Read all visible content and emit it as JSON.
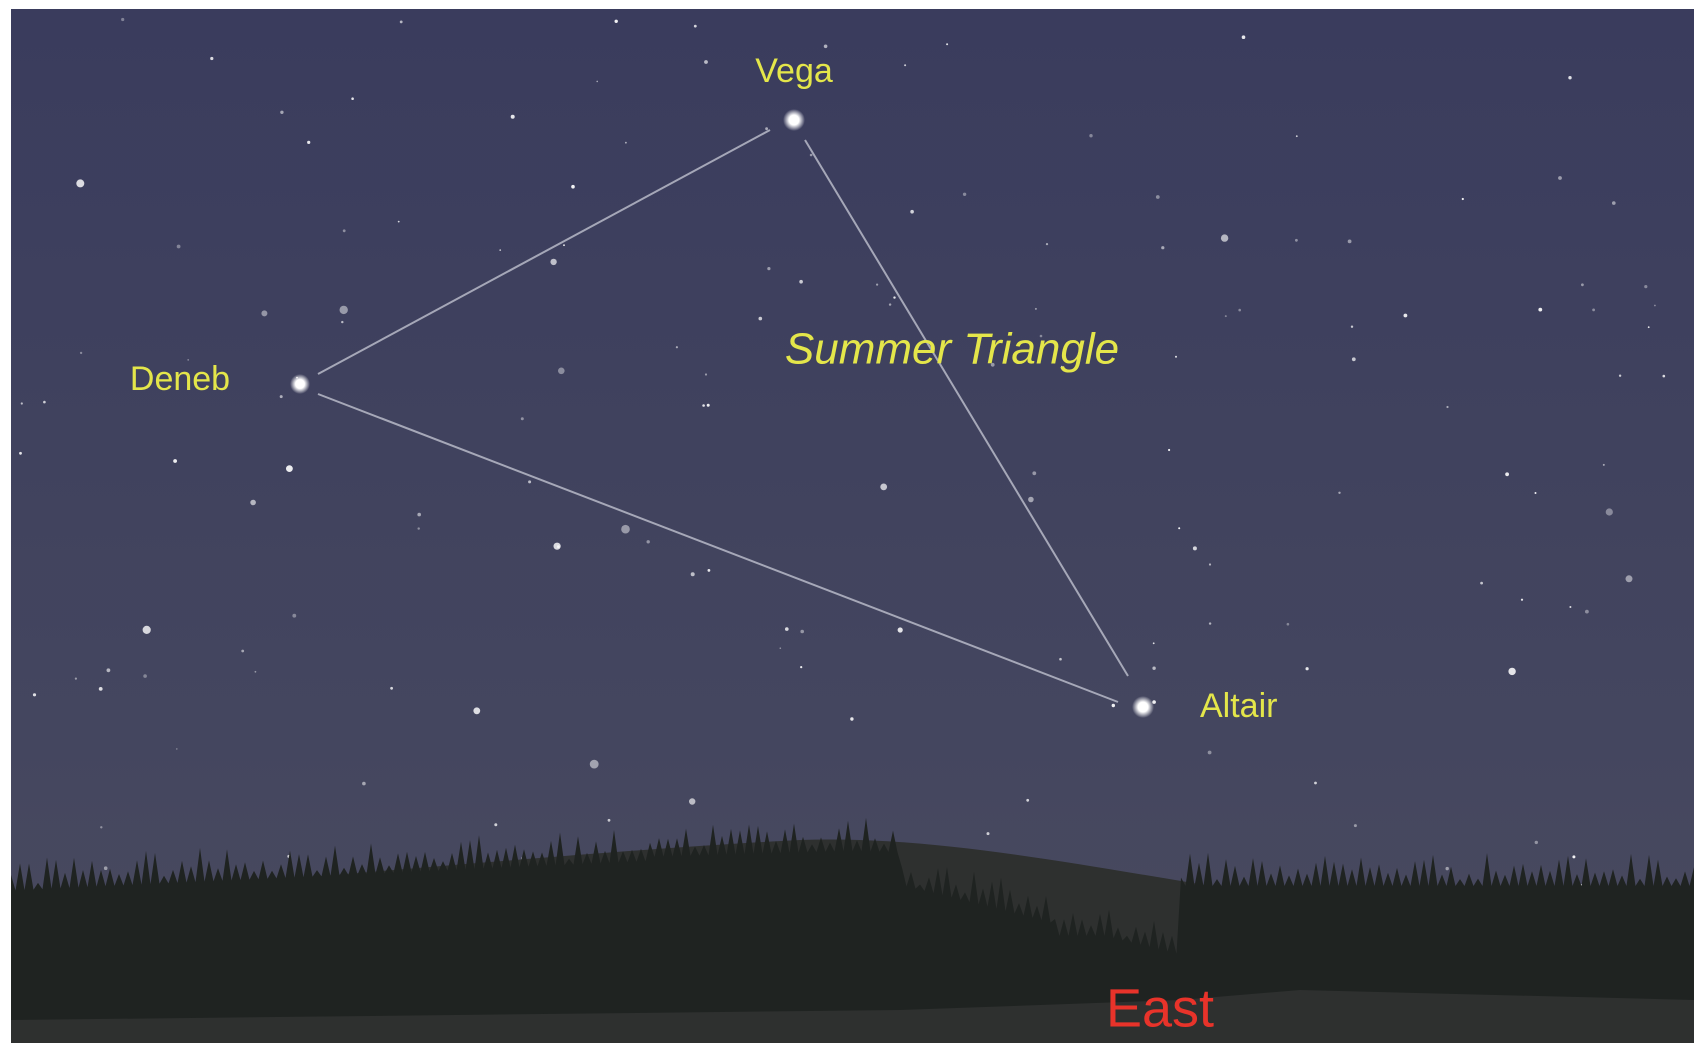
{
  "title": "Summer Triangle",
  "stars": [
    {
      "label": "Vega"
    },
    {
      "label": "Deneb"
    },
    {
      "label": "Altair"
    }
  ],
  "direction": "East"
}
